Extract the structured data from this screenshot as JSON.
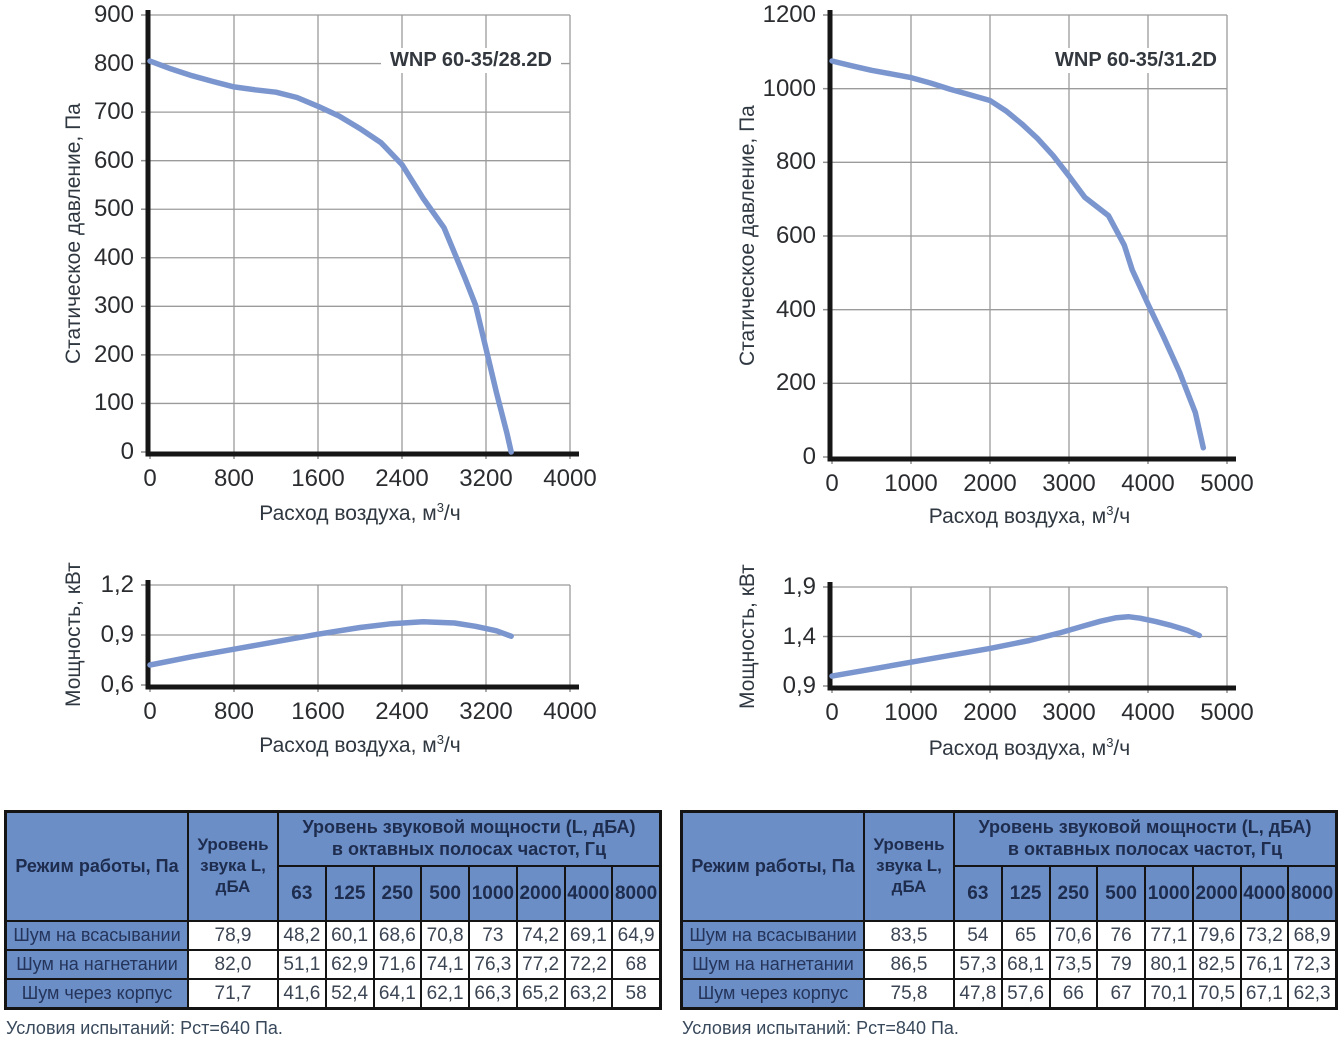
{
  "colors": {
    "curve": "#7b96cf",
    "table_header": "#6b8ec7",
    "grid": "#9b9b9b",
    "axis": "#161616",
    "border": "#141414"
  },
  "chart_data": [
    {
      "id": "pressure-wnp-60-35-28-2d",
      "type": "line",
      "title": "WNP 60-35/28.2D",
      "ylabel": "Статическое давление, Па",
      "xlabel_prefix": "Расход воздуха, м",
      "xlabel_sup": "3",
      "xlabel_suffix": "/ч",
      "xlim": [
        0,
        4000
      ],
      "ylim": [
        0,
        900
      ],
      "grid": true,
      "x_ticks": {
        "values": [
          0,
          800,
          1600,
          2400,
          3200,
          4000
        ],
        "labels": [
          "0",
          "800",
          "1600",
          "2400",
          "3200",
          "4000"
        ]
      },
      "y_ticks": {
        "values": [
          0,
          100,
          200,
          300,
          400,
          500,
          600,
          700,
          800,
          900
        ],
        "labels": [
          "0",
          "100",
          "200",
          "300",
          "400",
          "500",
          "600",
          "700",
          "800",
          "900"
        ]
      },
      "series": [
        {
          "name": "Статическое давление",
          "points": [
            [
              0,
              805
            ],
            [
              200,
              789
            ],
            [
              400,
              775
            ],
            [
              600,
              763
            ],
            [
              800,
              752
            ],
            [
              1000,
              746
            ],
            [
              1200,
              741
            ],
            [
              1400,
              730
            ],
            [
              1600,
              712
            ],
            [
              1800,
              692
            ],
            [
              2000,
              666
            ],
            [
              2200,
              637
            ],
            [
              2400,
              592
            ],
            [
              2600,
              523
            ],
            [
              2800,
              462
            ],
            [
              3000,
              358
            ],
            [
              3100,
              303
            ],
            [
              3200,
              213
            ],
            [
              3300,
              122
            ],
            [
              3400,
              38
            ],
            [
              3440,
              0
            ]
          ]
        }
      ]
    },
    {
      "id": "pressure-wnp-60-35-31-2d",
      "type": "line",
      "title": "WNP 60-35/31.2D",
      "ylabel": "Статическое давление, Па",
      "xlabel_prefix": "Расход воздуха, м",
      "xlabel_sup": "3",
      "xlabel_suffix": "/ч",
      "xlim": [
        0,
        5000
      ],
      "ylim": [
        0,
        1200
      ],
      "grid": true,
      "x_ticks": {
        "values": [
          0,
          1000,
          2000,
          3000,
          4000,
          5000
        ],
        "labels": [
          "0",
          "1000",
          "2000",
          "3000",
          "4000",
          "5000"
        ]
      },
      "y_ticks": {
        "values": [
          0,
          200,
          400,
          600,
          800,
          1000,
          1200
        ],
        "labels": [
          "0",
          "200",
          "400",
          "600",
          "800",
          "1000",
          "1200"
        ]
      },
      "series": [
        {
          "name": "Статическое давление",
          "points": [
            [
              0,
              1075
            ],
            [
              250,
              1062
            ],
            [
              500,
              1050
            ],
            [
              750,
              1040
            ],
            [
              1000,
              1030
            ],
            [
              1250,
              1015
            ],
            [
              1500,
              998
            ],
            [
              1750,
              983
            ],
            [
              2000,
              968
            ],
            [
              2200,
              940
            ],
            [
              2400,
              905
            ],
            [
              2600,
              865
            ],
            [
              2800,
              818
            ],
            [
              3000,
              763
            ],
            [
              3200,
              705
            ],
            [
              3500,
              655
            ],
            [
              3700,
              575
            ],
            [
              3800,
              508
            ],
            [
              4000,
              415
            ],
            [
              4200,
              325
            ],
            [
              4400,
              230
            ],
            [
              4600,
              120
            ],
            [
              4700,
              25
            ]
          ]
        }
      ]
    },
    {
      "id": "power-wnp-60-35-28-2d",
      "type": "line",
      "title": "",
      "ylabel": "Мощность, кВт",
      "xlabel_prefix": "Расход воздуха, м",
      "xlabel_sup": "3",
      "xlabel_suffix": "/ч",
      "xlim": [
        0,
        4000
      ],
      "ylim": [
        0.6,
        1.2
      ],
      "grid": true,
      "x_ticks": {
        "values": [
          0,
          800,
          1600,
          2400,
          3200,
          4000
        ],
        "labels": [
          "0",
          "800",
          "1600",
          "2400",
          "3200",
          "4000"
        ]
      },
      "y_ticks": {
        "values": [
          0.6,
          0.9,
          1.2
        ],
        "labels": [
          "0,6",
          "0,9",
          "1,2"
        ]
      },
      "series": [
        {
          "name": "Мощность",
          "points": [
            [
              0,
              0.72
            ],
            [
              400,
              0.77
            ],
            [
              800,
              0.815
            ],
            [
              1200,
              0.86
            ],
            [
              1600,
              0.905
            ],
            [
              2000,
              0.945
            ],
            [
              2300,
              0.968
            ],
            [
              2600,
              0.98
            ],
            [
              2900,
              0.972
            ],
            [
              3100,
              0.952
            ],
            [
              3300,
              0.925
            ],
            [
              3440,
              0.893
            ]
          ]
        }
      ]
    },
    {
      "id": "power-wnp-60-35-31-2d",
      "type": "line",
      "title": "",
      "ylabel": "Мощность, кВт",
      "xlabel_prefix": "Расход воздуха, м",
      "xlabel_sup": "3",
      "xlabel_suffix": "/ч",
      "xlim": [
        0,
        5000
      ],
      "ylim": [
        0.9,
        1.9
      ],
      "grid": true,
      "x_ticks": {
        "values": [
          0,
          1000,
          2000,
          3000,
          4000,
          5000
        ],
        "labels": [
          "0",
          "1000",
          "2000",
          "3000",
          "4000",
          "5000"
        ]
      },
      "y_ticks": {
        "values": [
          0.9,
          1.4,
          1.9
        ],
        "labels": [
          "0,9",
          "1,4",
          "1,9"
        ]
      },
      "series": [
        {
          "name": "Мощность",
          "points": [
            [
              0,
              1.0
            ],
            [
              500,
              1.07
            ],
            [
              1000,
              1.14
            ],
            [
              1500,
              1.21
            ],
            [
              2000,
              1.28
            ],
            [
              2500,
              1.36
            ],
            [
              2900,
              1.44
            ],
            [
              3200,
              1.51
            ],
            [
              3400,
              1.555
            ],
            [
              3600,
              1.59
            ],
            [
              3750,
              1.6
            ],
            [
              3900,
              1.585
            ],
            [
              4100,
              1.55
            ],
            [
              4300,
              1.51
            ],
            [
              4500,
              1.462
            ],
            [
              4650,
              1.41
            ]
          ]
        }
      ]
    }
  ],
  "tables": [
    {
      "id": "noise-wnp-60-35-28-2d",
      "mode_header": "Режим работы, Па",
      "level_header": "Уровень звука L, дБА",
      "octave_header_line1": "Уровень звуковой мощности (L, дБА)",
      "octave_header_line2": "в октавных полосах частот, Гц",
      "frequencies": [
        "63",
        "125",
        "250",
        "500",
        "1000",
        "2000",
        "4000",
        "8000"
      ],
      "rows": [
        {
          "label": "Шум на всасывании",
          "level": "78,9",
          "values": [
            "48,2",
            "60,1",
            "68,6",
            "70,8",
            "73",
            "74,2",
            "69,1",
            "64,9"
          ]
        },
        {
          "label": "Шум на нагнетании",
          "level": "82,0",
          "values": [
            "51,1",
            "62,9",
            "71,6",
            "74,1",
            "76,3",
            "77,2",
            "72,2",
            "68"
          ]
        },
        {
          "label": "Шум через корпус",
          "level": "71,7",
          "values": [
            "41,6",
            "52,4",
            "64,1",
            "62,1",
            "66,3",
            "65,2",
            "63,2",
            "58"
          ]
        }
      ],
      "footnote": "Условия испытаний: Рст=640 Па."
    },
    {
      "id": "noise-wnp-60-35-31-2d",
      "mode_header": "Режим работы, Па",
      "level_header": "Уровень звука L, дБА",
      "octave_header_line1": "Уровень звуковой мощности (L, дБА)",
      "octave_header_line2": "в октавных полосах частот, Гц",
      "frequencies": [
        "63",
        "125",
        "250",
        "500",
        "1000",
        "2000",
        "4000",
        "8000"
      ],
      "rows": [
        {
          "label": "Шум на всасывании",
          "level": "83,5",
          "values": [
            "54",
            "65",
            "70,6",
            "76",
            "77,1",
            "79,6",
            "73,2",
            "68,9"
          ]
        },
        {
          "label": "Шум на нагнетании",
          "level": "86,5",
          "values": [
            "57,3",
            "68,1",
            "73,5",
            "79",
            "80,1",
            "82,5",
            "76,1",
            "72,3"
          ]
        },
        {
          "label": "Шум через корпус",
          "level": "75,8",
          "values": [
            "47,8",
            "57,6",
            "66",
            "67",
            "70,1",
            "70,5",
            "67,1",
            "62,3"
          ]
        }
      ],
      "footnote": "Условия испытаний: Рст=840 Па."
    }
  ]
}
